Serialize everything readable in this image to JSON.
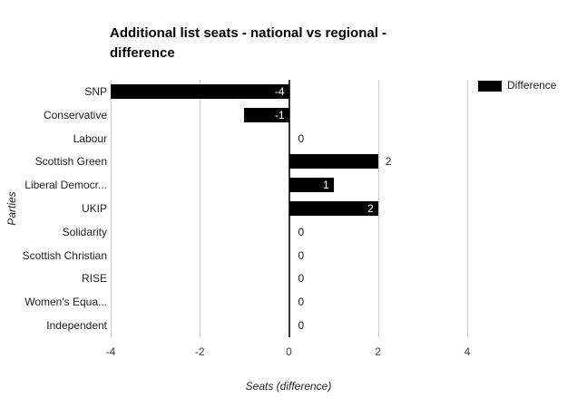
{
  "chart_data": {
    "type": "bar",
    "orientation": "horizontal",
    "title": "Additional list seats - national vs regional - difference",
    "title_lines": [
      "Additional list seats - national vs regional -",
      "difference"
    ],
    "xlabel": "Seats (difference)",
    "ylabel": "Parties",
    "legend": {
      "label": "Difference",
      "color": "#000000",
      "position": "top-right"
    },
    "xlim": [
      -4,
      4
    ],
    "x_ticks": [
      -4,
      -2,
      0,
      2,
      4
    ],
    "x_tick_labels": [
      "-4",
      "-2",
      "0",
      "2",
      "4"
    ],
    "grid": true,
    "categories": [
      "SNP",
      "Conservative",
      "Labour",
      "Scottish Green",
      "Liberal Democr...",
      "UKIP",
      "Solidarity",
      "Scottish Christian",
      "RISE",
      "Women's Equa...",
      "Independent"
    ],
    "values": [
      -4,
      -1,
      0,
      2,
      1,
      2,
      0,
      0,
      0,
      0,
      0
    ],
    "rows": [
      {
        "party": "SNP",
        "value": -4,
        "label": "-4",
        "label_placement": "inside"
      },
      {
        "party": "Conservative",
        "value": -1,
        "label": "-1",
        "label_placement": "inside"
      },
      {
        "party": "Labour",
        "value": 0,
        "label": "0",
        "label_placement": "outside"
      },
      {
        "party": "Scottish Green",
        "value": 2,
        "label": "2",
        "label_placement": "outside"
      },
      {
        "party": "Liberal Democr...",
        "value": 1,
        "label": "1",
        "label_placement": "inside"
      },
      {
        "party": "UKIP",
        "value": 2,
        "label": "2",
        "label_placement": "inside"
      },
      {
        "party": "Solidarity",
        "value": 0,
        "label": "0",
        "label_placement": "outside"
      },
      {
        "party": "Scottish Christian",
        "value": 0,
        "label": "0",
        "label_placement": "outside"
      },
      {
        "party": "RISE",
        "value": 0,
        "label": "0",
        "label_placement": "outside"
      },
      {
        "party": "Women's Equa...",
        "value": 0,
        "label": "0",
        "label_placement": "outside"
      },
      {
        "party": "Independent",
        "value": 0,
        "label": "0",
        "label_placement": "outside"
      }
    ],
    "colors": {
      "bar": "#000000",
      "gridline": "#cccccc",
      "zero_axis": "#333333",
      "title_text": "#000000",
      "label_text": "#222222",
      "tick_text": "#444444",
      "annotation_inside": "#ffffff",
      "annotation_outside": "#1a1a1a",
      "background": "#ffffff"
    }
  }
}
